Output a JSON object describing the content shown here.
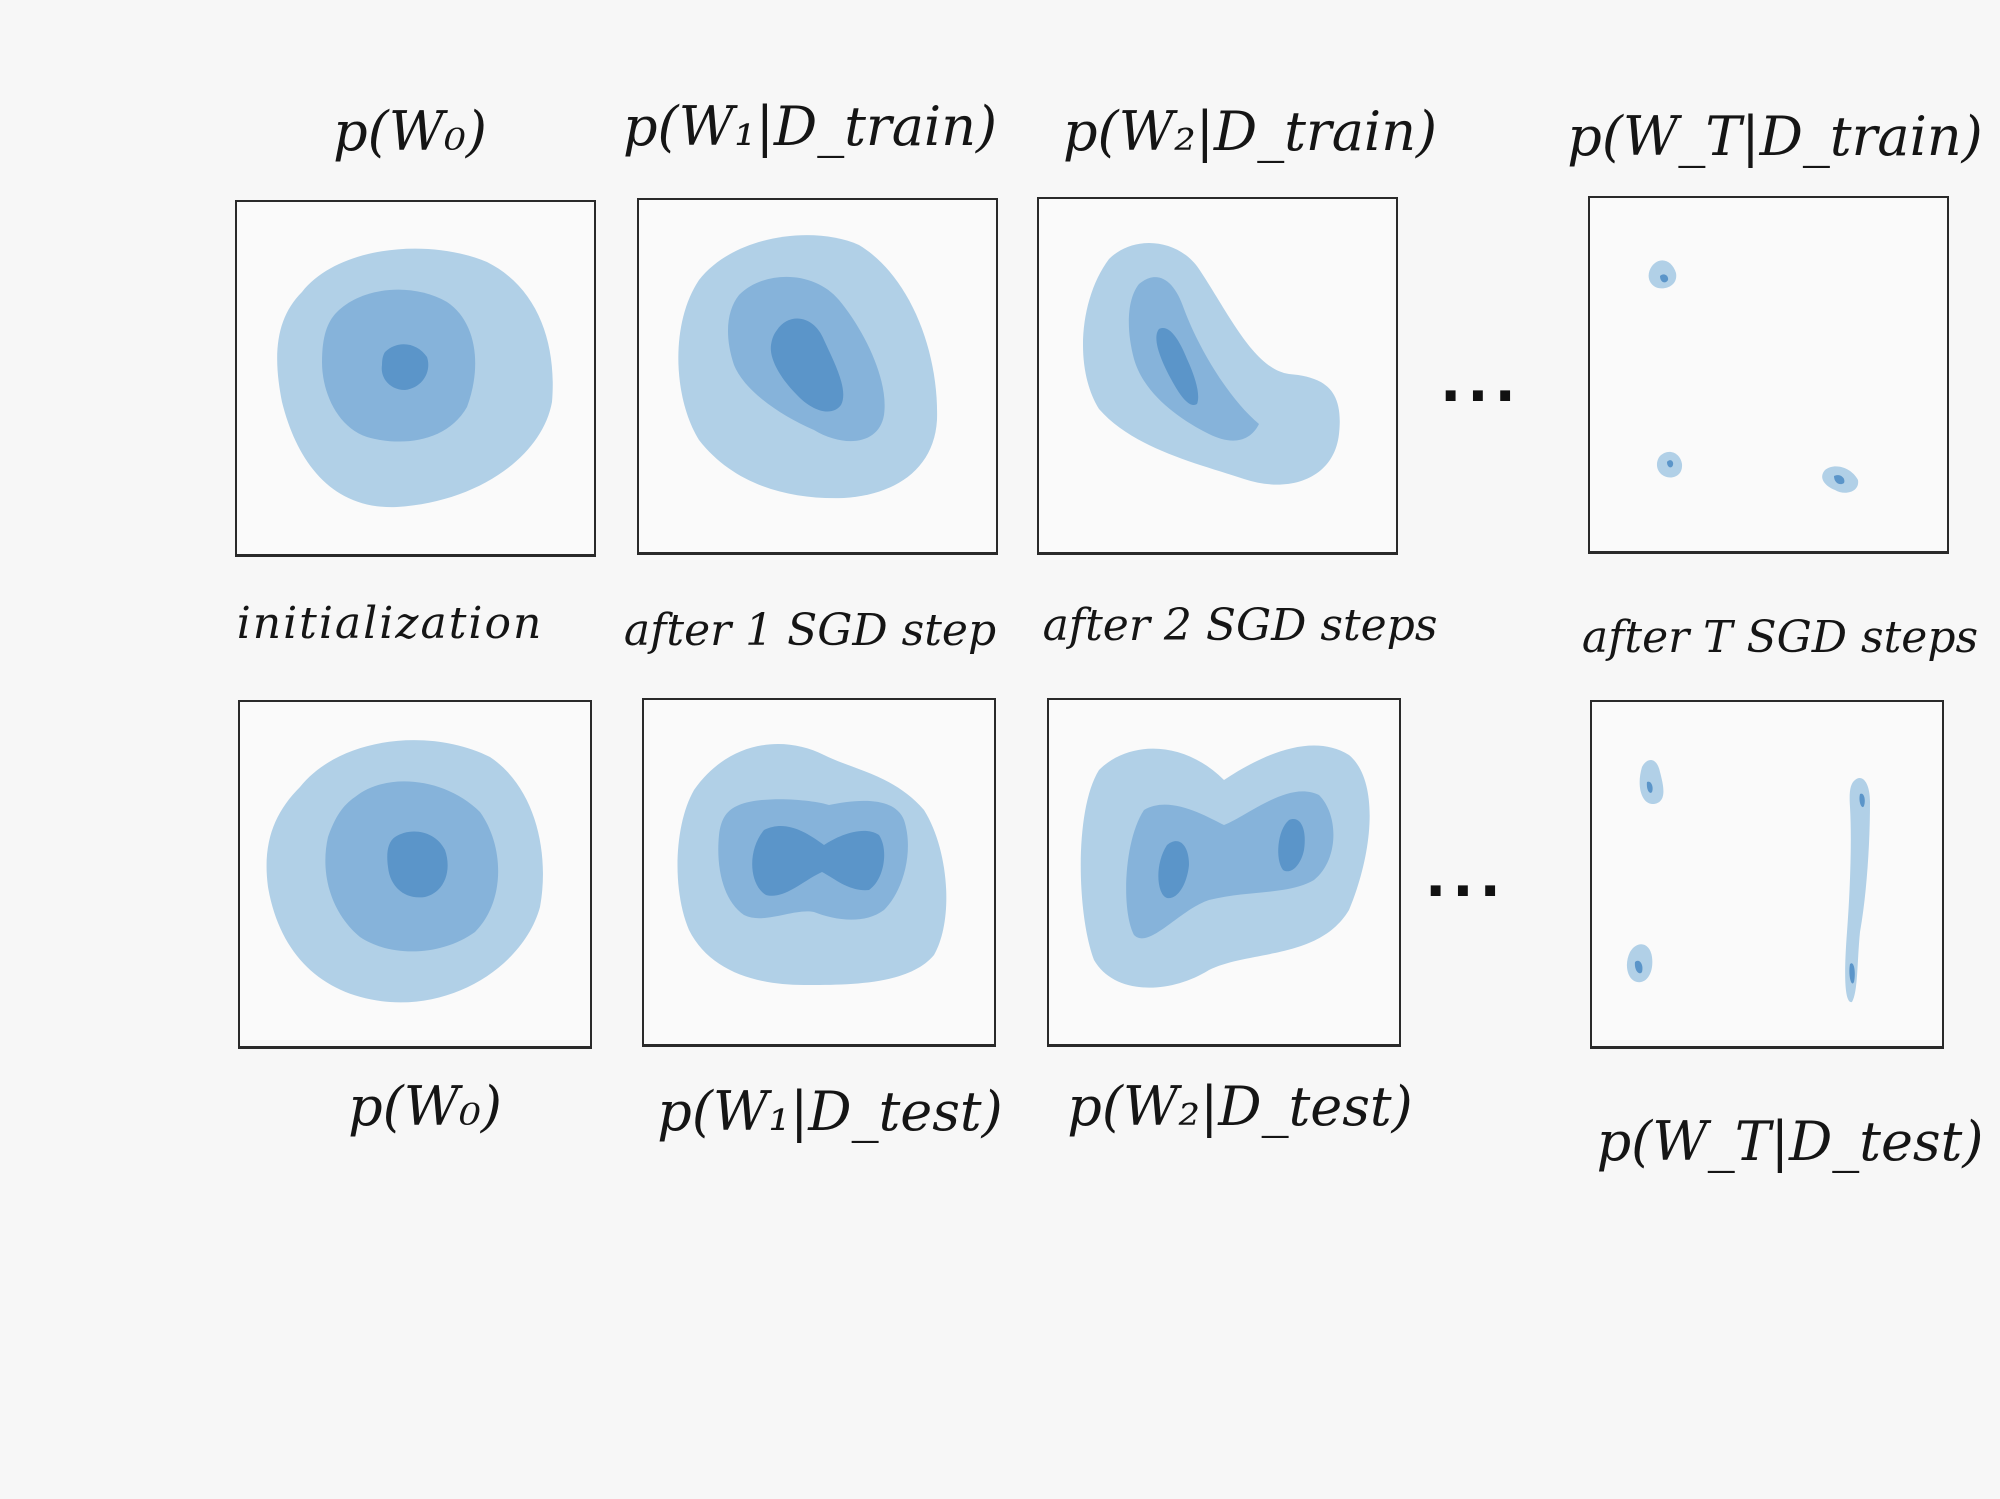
{
  "top_row": {
    "labels": [
      "p(W₀)",
      "p(W₁|D_train)",
      "p(W₂|D_train)",
      "p(W_T|D_train)"
    ]
  },
  "middle_row": {
    "labels": [
      "initialization",
      "after 1 SGD step",
      "after 2 SGD steps",
      "after T SGD steps"
    ]
  },
  "bottom_row": {
    "labels": [
      "p(W₀)",
      "p(W₁|D_test)",
      "p(W₂|D_test)",
      "p(W_T|D_test)"
    ]
  },
  "ellipsis": "...",
  "colors": {
    "level1": "#b1d0e7",
    "level2": "#86b3da",
    "level3": "#5b95c9",
    "ink": "#1a1a1a"
  }
}
